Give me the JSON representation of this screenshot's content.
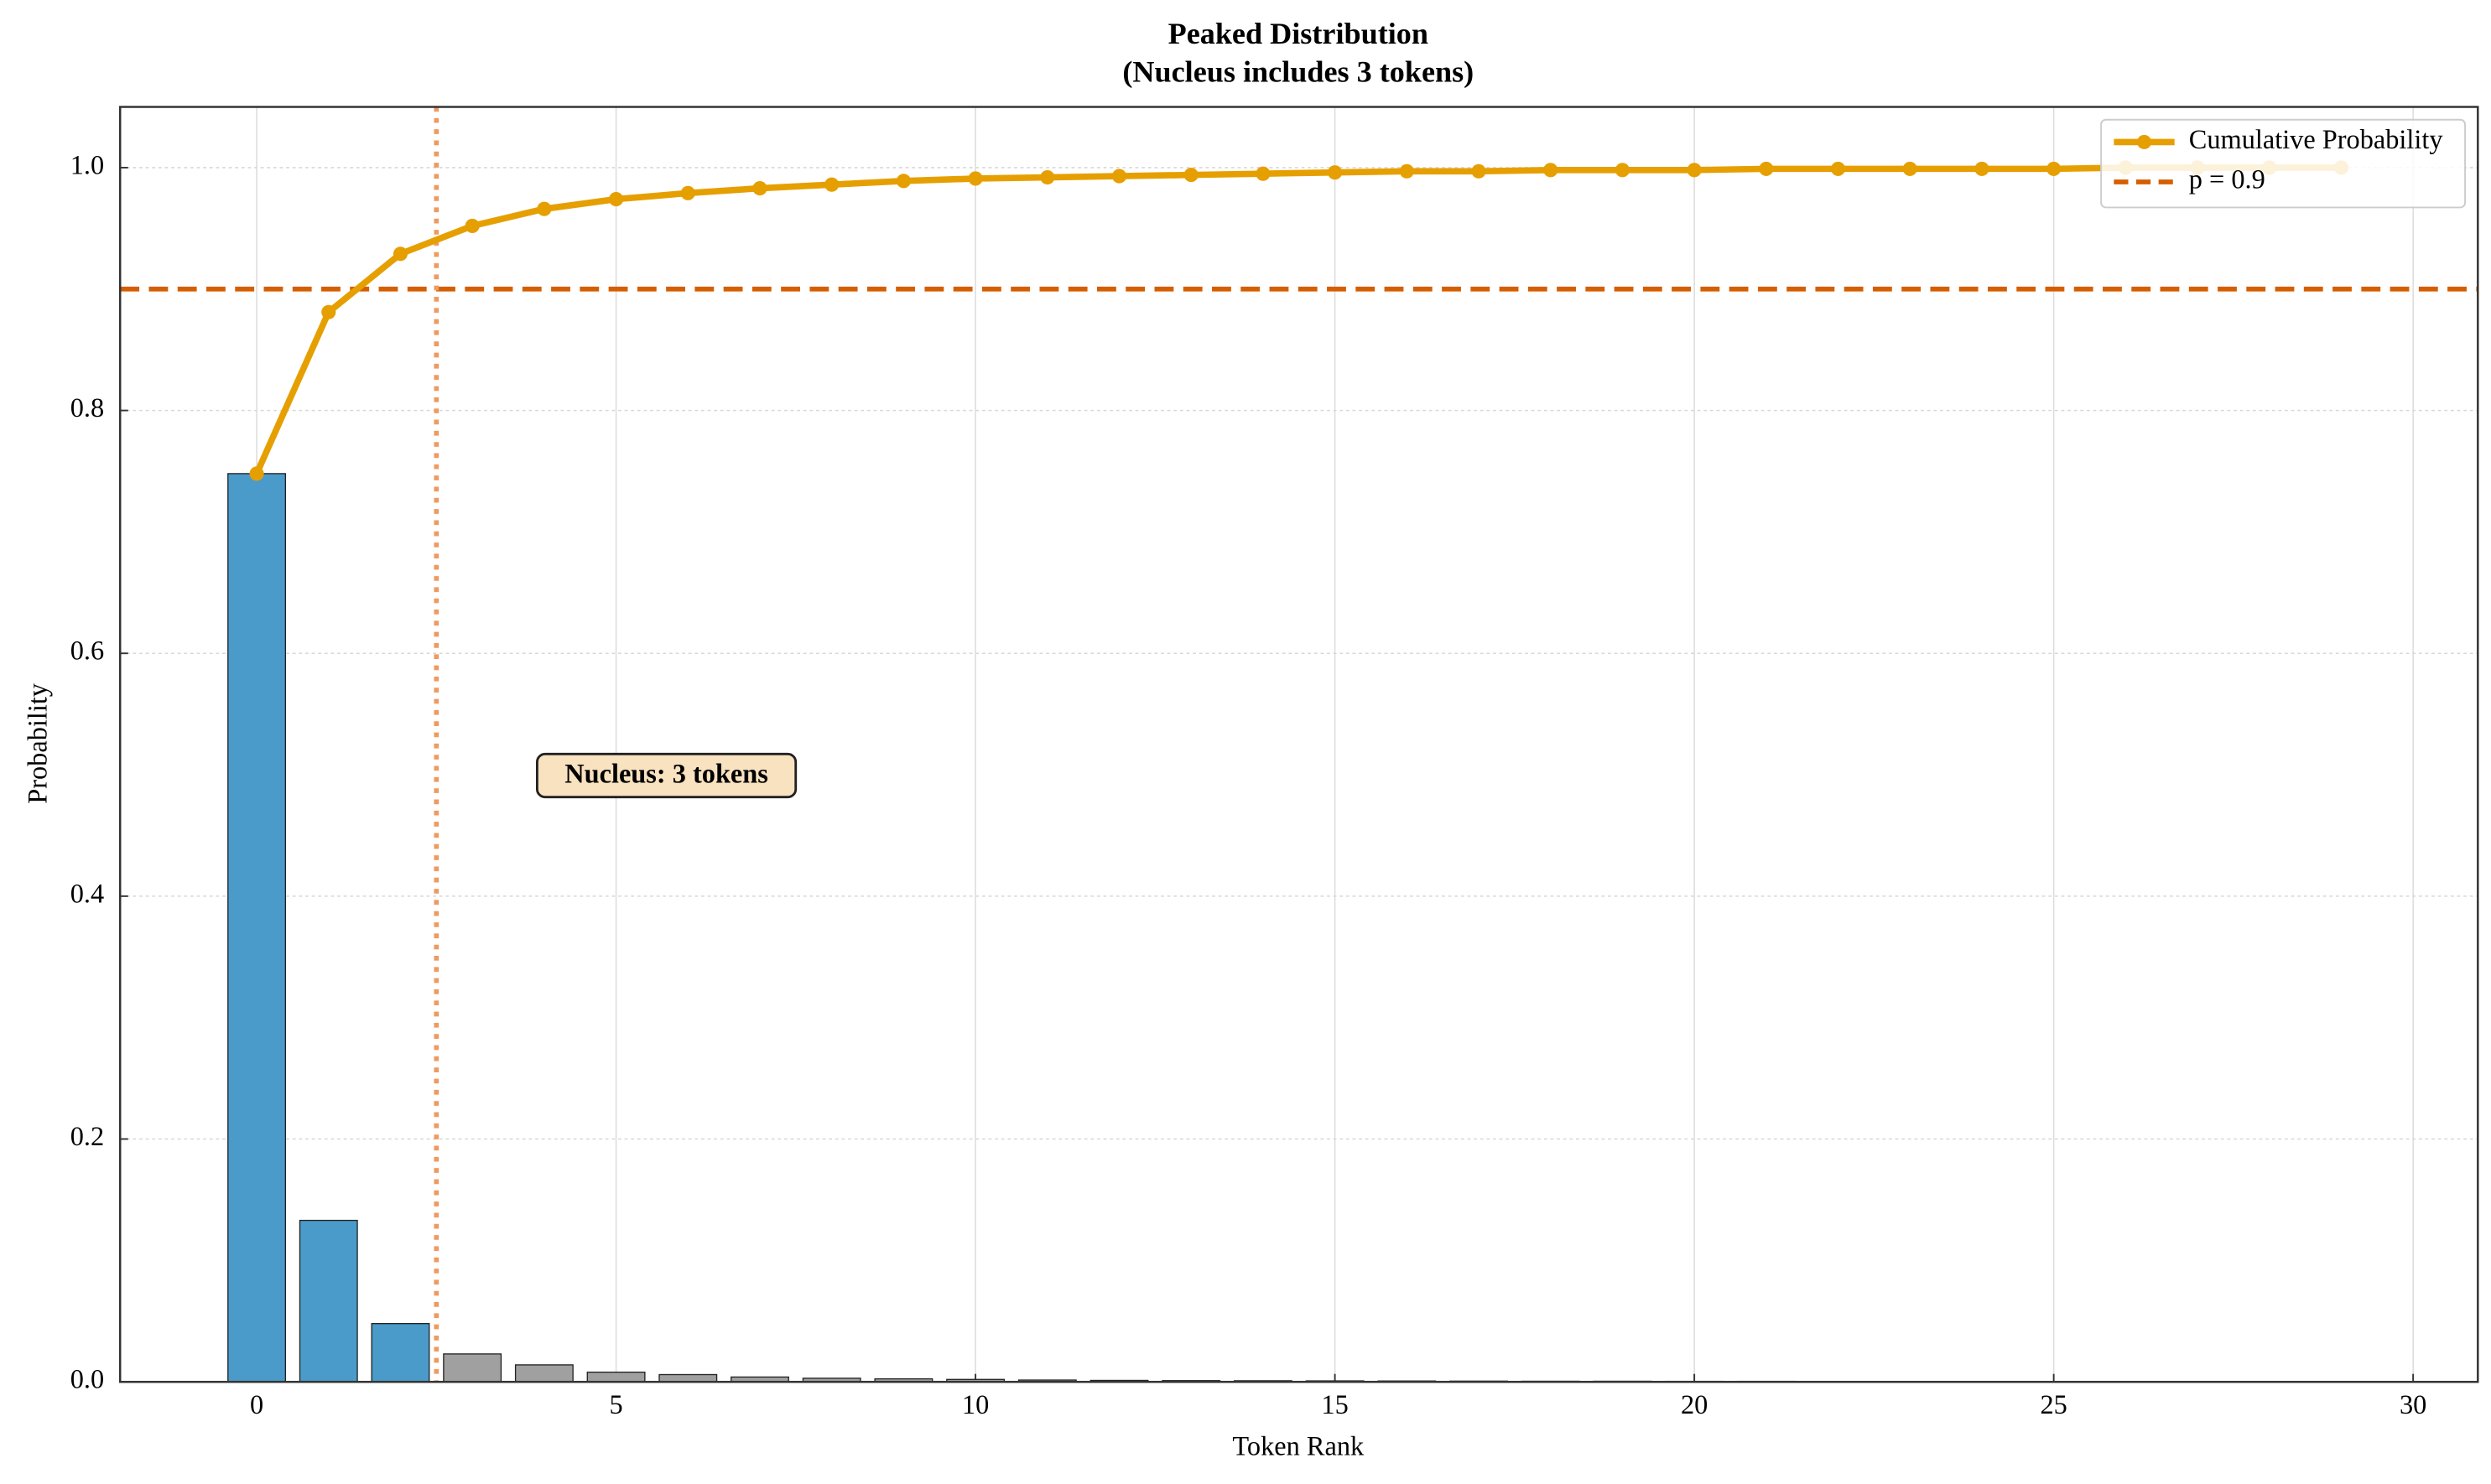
{
  "chart_data": {
    "type": "bar",
    "title": "Peaked Distribution",
    "subtitle": "(Nucleus includes 3 tokens)",
    "x_label": "Token Rank",
    "y_label": "Probability",
    "x": [
      0,
      1,
      2,
      3,
      4,
      5,
      6,
      7,
      8,
      9,
      10,
      11,
      12,
      13,
      14,
      15,
      16,
      17,
      18,
      19,
      20,
      21,
      22,
      23,
      24,
      25,
      26,
      27,
      28,
      29
    ],
    "values": [
      0.748,
      0.133,
      0.048,
      0.023,
      0.014,
      0.008,
      0.006,
      0.004,
      0.003,
      0.0025,
      0.002,
      0.0015,
      0.0012,
      0.001,
      0.0009,
      0.0008,
      0.0007,
      0.0006,
      0.0005,
      0.0005,
      0.0004,
      0.0004,
      0.0003,
      0.0003,
      0.0003,
      0.0002,
      0.0002,
      0.0002,
      0.0002,
      0.0001
    ],
    "bar_colors": [
      "#4a9bca",
      "#4a9bca",
      "#4a9bca",
      "#a0a0a0",
      "#a0a0a0",
      "#a0a0a0",
      "#a0a0a0",
      "#a0a0a0",
      "#a0a0a0",
      "#a0a0a0",
      "#a0a0a0",
      "#a0a0a0",
      "#a0a0a0",
      "#a0a0a0",
      "#a0a0a0",
      "#a0a0a0",
      "#a0a0a0",
      "#a0a0a0",
      "#a0a0a0",
      "#a0a0a0",
      "#a0a0a0",
      "#a0a0a0",
      "#a0a0a0",
      "#a0a0a0",
      "#a0a0a0",
      "#a0a0a0",
      "#a0a0a0",
      "#a0a0a0",
      "#a0a0a0",
      "#a0a0a0"
    ],
    "series": [
      {
        "name": "Cumulative Probability",
        "color": "#e69f00",
        "values": [
          0.748,
          0.881,
          0.929,
          0.952,
          0.966,
          0.974,
          0.979,
          0.983,
          0.986,
          0.989,
          0.991,
          0.992,
          0.993,
          0.994,
          0.995,
          0.996,
          0.997,
          0.997,
          0.998,
          0.998,
          0.998,
          0.999,
          0.999,
          0.999,
          0.999,
          0.999,
          1.0,
          1.0,
          1.0,
          1.0
        ]
      }
    ],
    "hline": {
      "value": 0.9,
      "label": "p = 0.9",
      "color": "#d55e00"
    },
    "vline": {
      "value": 2.5,
      "color": "#ee9a60"
    },
    "annotation": {
      "text": "Nucleus: 3 tokens",
      "x": 5.7,
      "y": 0.5
    },
    "xlim": [
      -1.9,
      30.9
    ],
    "ylim": [
      0,
      1.05
    ],
    "xticks": [
      0,
      5,
      10,
      15,
      20,
      25,
      30
    ],
    "yticks": [
      {
        "value": 0,
        "label": "0.0"
      },
      0.2,
      0.4,
      0.6,
      0.8,
      {
        "value": 1,
        "label": "1.0"
      }
    ],
    "grid": true,
    "legend": "upper right"
  }
}
